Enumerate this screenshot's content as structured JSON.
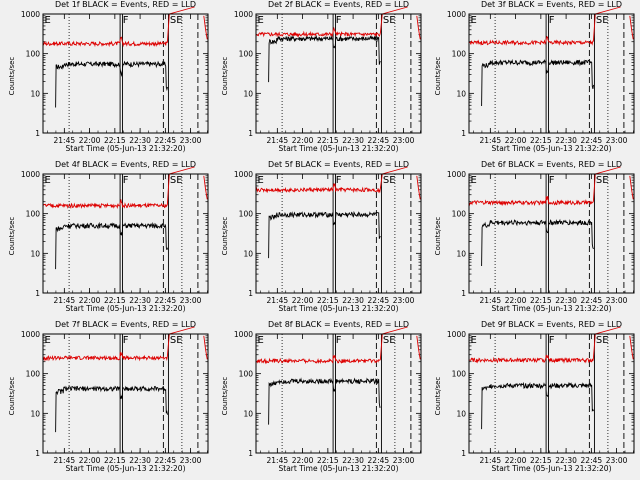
{
  "chart_data": {
    "type": "line",
    "xlabel": "Start Time (05-Jun-13 21:32:20)",
    "ylabel": "Counts/sec",
    "yscale": "log",
    "ylim": [
      1,
      1000
    ],
    "ytick_labels": [
      "1",
      "10",
      "100",
      "1000"
    ],
    "xlim_minutes_from_start": [
      0,
      98
    ],
    "xtick_labels": [
      "21:45",
      "22:00",
      "22:15",
      "22:30",
      "22:45",
      "23:00"
    ],
    "xtick_minutes": [
      12.67,
      27.67,
      42.67,
      57.67,
      72.67,
      87.67
    ],
    "colors": {
      "events": "#000000",
      "lld": "#dd0000"
    },
    "series_names": [
      "Events (BLACK)",
      "LLD (RED)"
    ],
    "markers": [
      {
        "label": "E",
        "minute": 0,
        "style": "dotted"
      },
      {
        "label": "",
        "minute": 15.5,
        "style": "dotted"
      },
      {
        "label": "F",
        "minute": 46.5,
        "style": "solid-double"
      },
      {
        "label": "",
        "minute": 71.5,
        "style": "dashed"
      },
      {
        "label": "SE",
        "minute": 74.5,
        "style": "solid"
      },
      {
        "label": "",
        "minute": 82.5,
        "style": "dotted"
      },
      {
        "label": "",
        "minute": 92.0,
        "style": "dashed"
      }
    ],
    "panels": [
      {
        "title": "Det 1f BLACK = Events, RED = LLD",
        "events_level": 55,
        "lld_level": 180
      },
      {
        "title": "Det 2f BLACK = Events, RED = LLD",
        "events_level": 240,
        "lld_level": 310
      },
      {
        "title": "Det 3f BLACK = Events, RED = LLD",
        "events_level": 60,
        "lld_level": 190
      },
      {
        "title": "Det 4f BLACK = Events, RED = LLD",
        "events_level": 50,
        "lld_level": 160
      },
      {
        "title": "Det 5f BLACK = Events, RED = LLD",
        "events_level": 95,
        "lld_level": 400
      },
      {
        "title": "Det 6f BLACK = Events, RED = LLD",
        "events_level": 60,
        "lld_level": 190
      },
      {
        "title": "Det 7f BLACK = Events, RED = LLD",
        "events_level": 42,
        "lld_level": 250
      },
      {
        "title": "Det 8f BLACK = Events, RED = LLD",
        "events_level": 65,
        "lld_level": 210
      },
      {
        "title": "Det 9f BLACK = Events, RED = LLD",
        "events_level": 50,
        "lld_level": 220
      }
    ]
  }
}
